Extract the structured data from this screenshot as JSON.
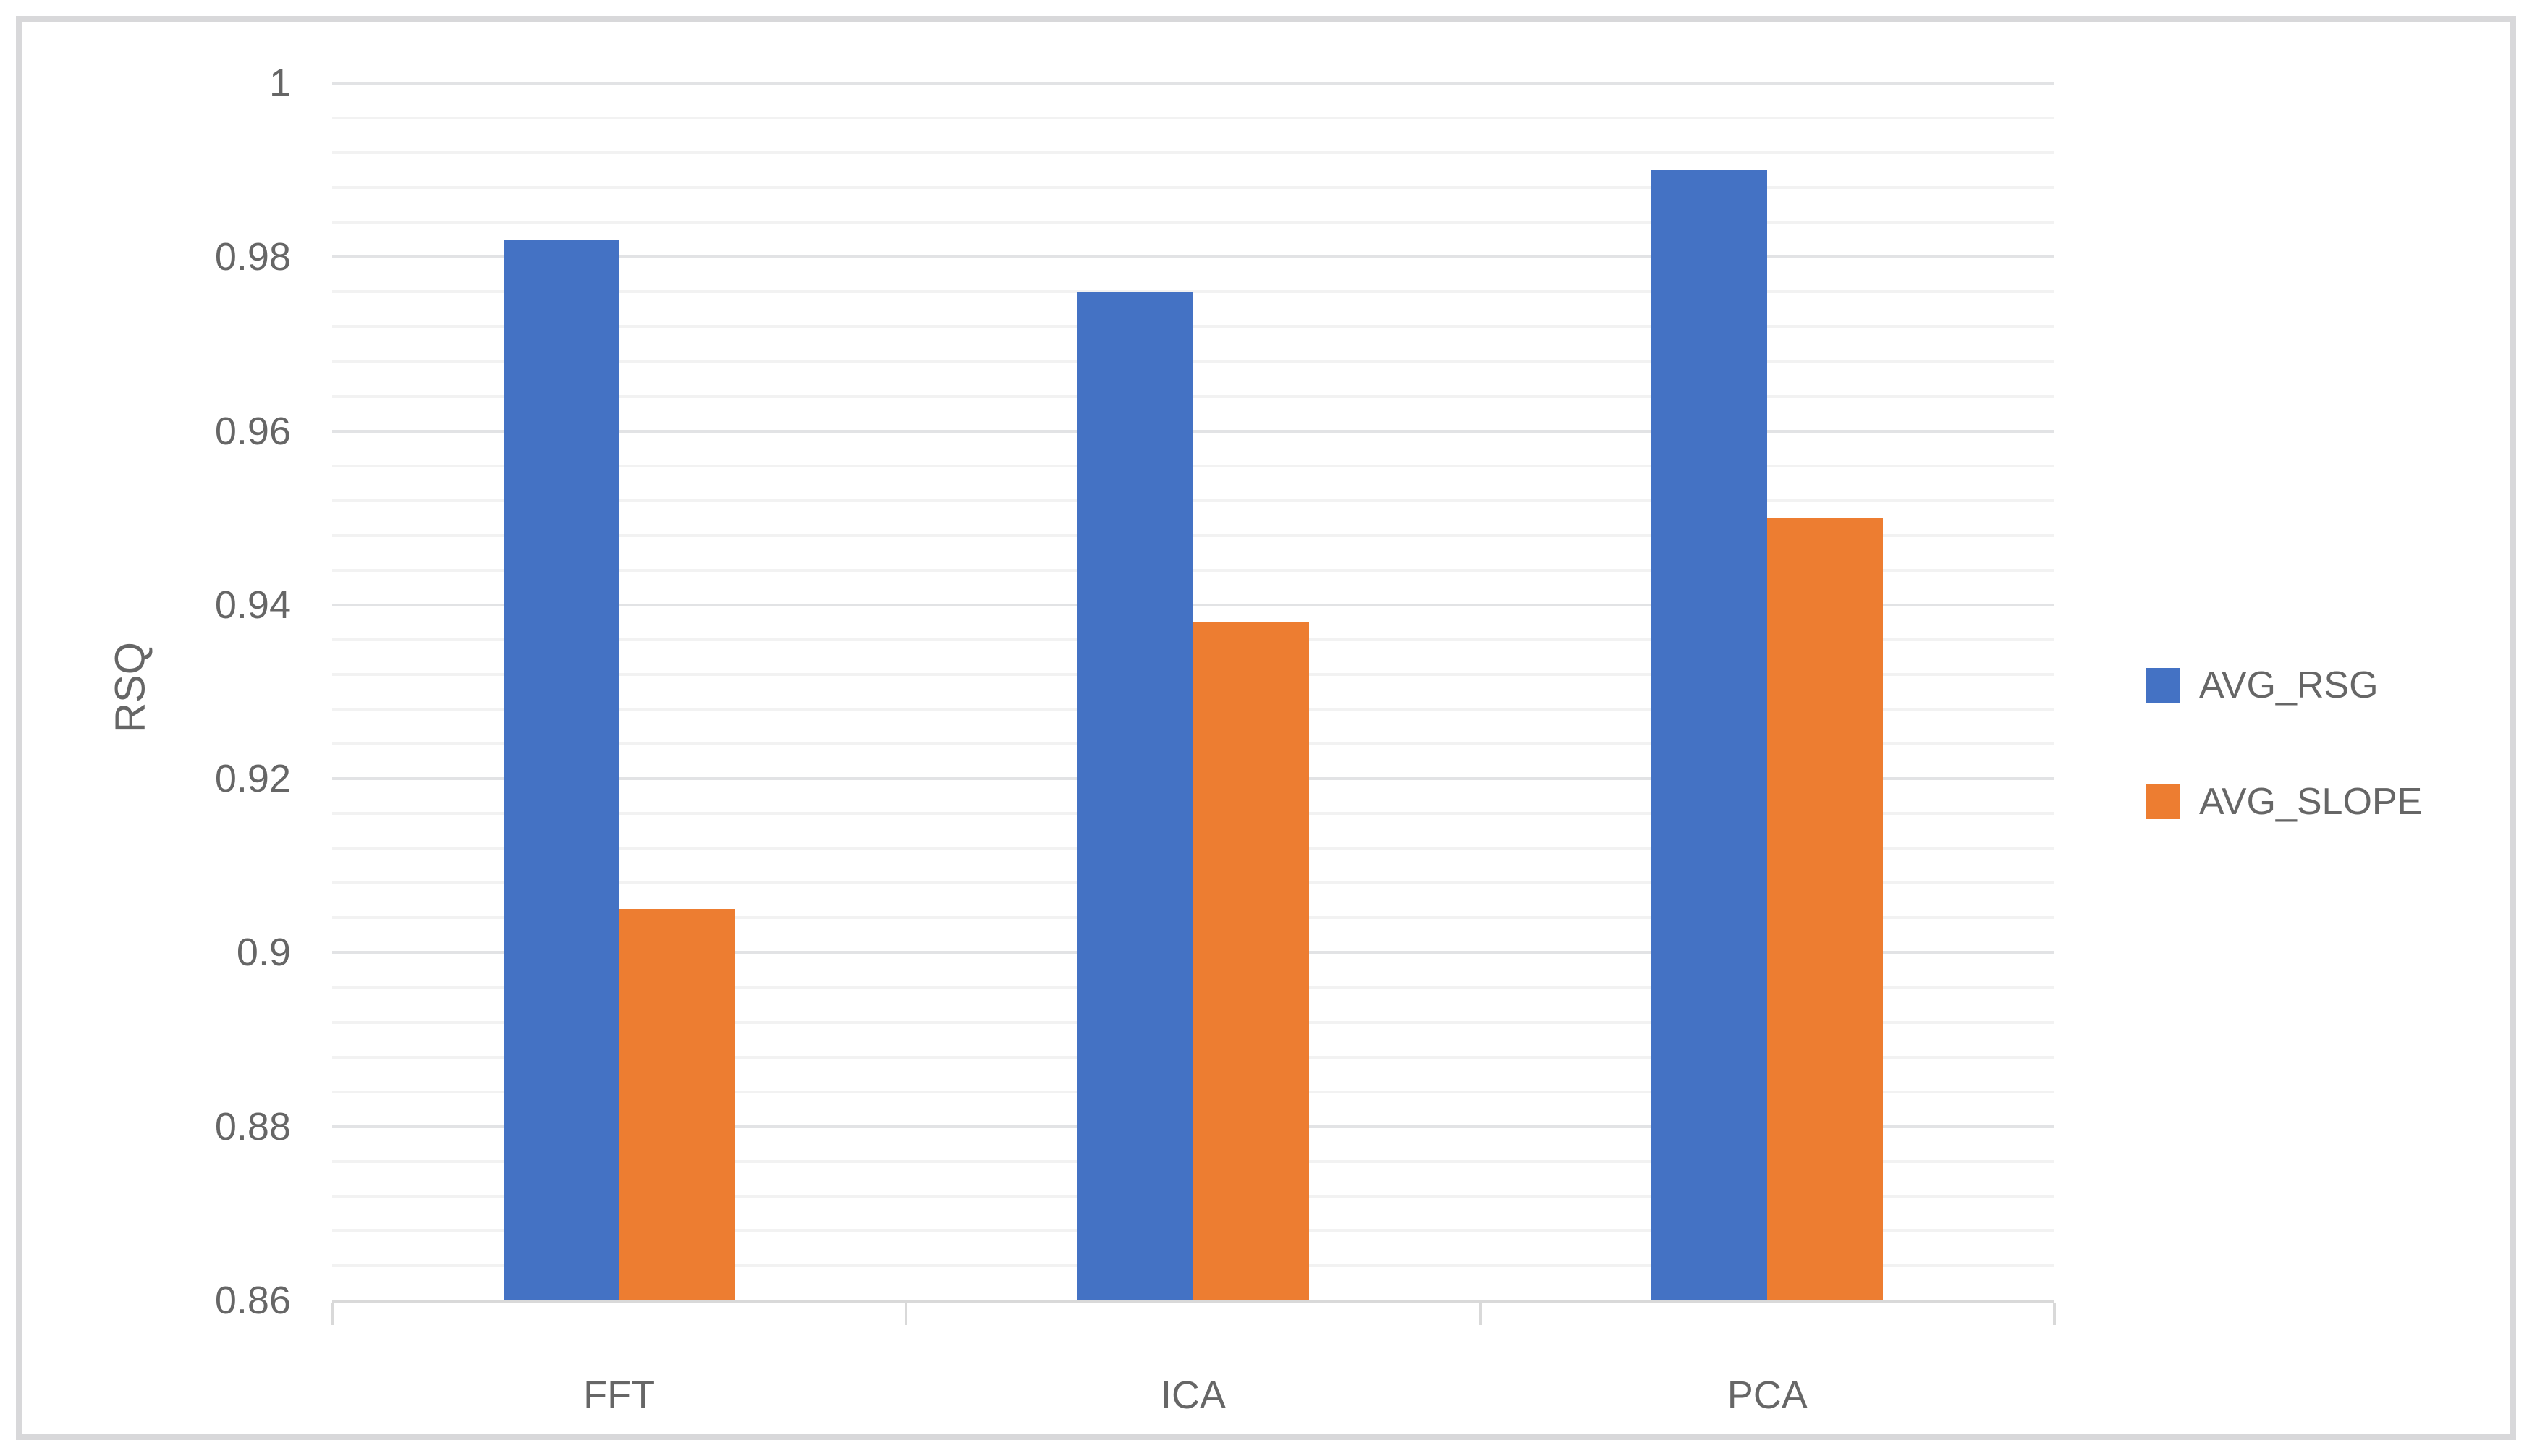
{
  "chart_data": {
    "type": "bar",
    "orientation": "vertical",
    "title": "",
    "categories": [
      "FFT",
      "ICA",
      "PCA"
    ],
    "series": [
      {
        "name": "AVG_RSG",
        "color": "#4472C4",
        "values": [
          0.982,
          0.976,
          0.99
        ]
      },
      {
        "name": "AVG_SLOPE",
        "color": "#ED7D31",
        "values": [
          0.905,
          0.938,
          0.95
        ]
      }
    ],
    "xlabel": "",
    "ylabel": "RSQ",
    "ylim": [
      0.86,
      1.0
    ],
    "y_major_unit": 0.02,
    "y_minor_unit": 0.004,
    "y_tick_labels": [
      "1",
      "0.98",
      "0.96",
      "0.94",
      "0.92",
      "0.9",
      "0.88",
      "0.86"
    ],
    "x_tick_labels": [
      "FFT",
      "ICA",
      "PCA"
    ],
    "grid": "horizontal, major and minor",
    "legend_position": "right",
    "legend": [
      "AVG_RSG",
      "AVG_SLOPE"
    ]
  },
  "style": {
    "background": "#FFFFFF",
    "border_color": "#D8D8DA",
    "text_color": "#666666",
    "axis_line_color": "#D9D9D9",
    "major_grid_color": "#E2E3E5",
    "minor_grid_color": "#F2F2F2"
  }
}
